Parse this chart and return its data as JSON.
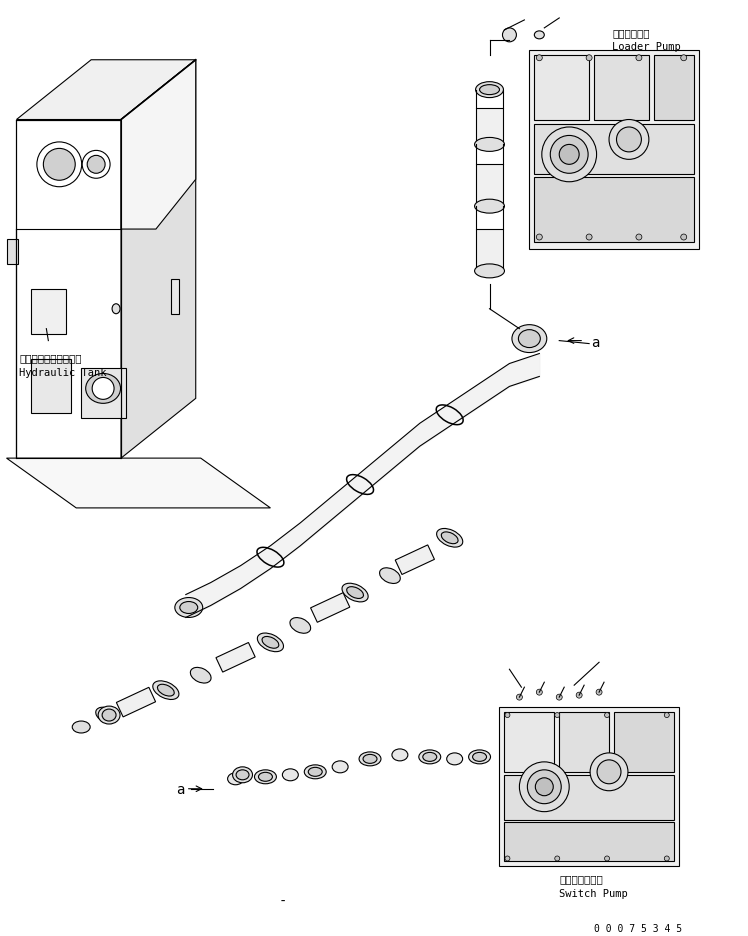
{
  "bg_color": "#ffffff",
  "line_color": "#000000",
  "text_color": "#000000",
  "label_loader_pump_jp": "ローダポンプ",
  "label_loader_pump_en": "Loader Pump",
  "label_switch_pump_jp": "スイッチポンプ",
  "label_switch_pump_en": "Switch Pump",
  "label_hydraulic_tank_jp": "ハイドロリックタンク",
  "label_hydraulic_tank_en": "Hydraulic Tank",
  "label_a": "a",
  "serial_number": "0 0 0 7 5 3 4 5",
  "figsize": [
    7.48,
    9.36
  ],
  "dpi": 100
}
